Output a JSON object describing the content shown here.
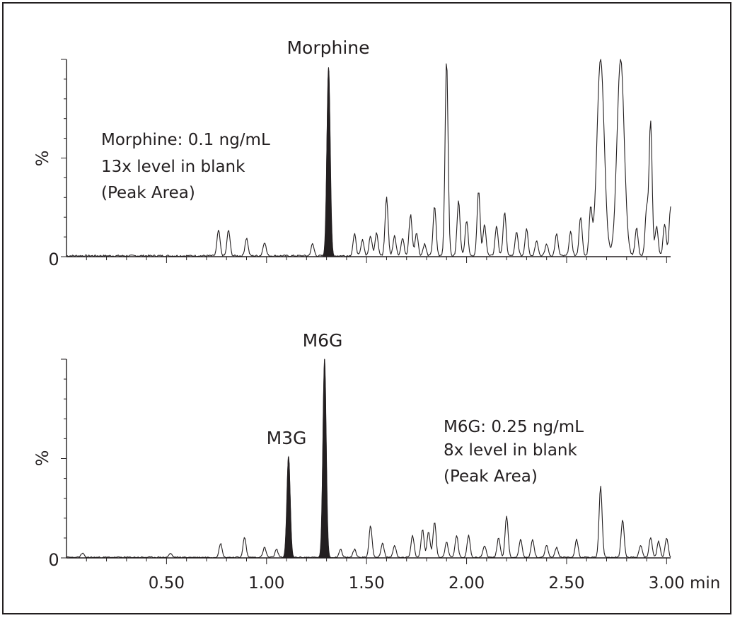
{
  "chart_data": [
    {
      "type": "line",
      "peak_labels": [
        "Morphine"
      ],
      "ylabel": "%",
      "yticks": [
        "0"
      ],
      "annotation": [
        "Morphine: 0.1 ng/mL",
        "13x level in blank",
        "(Peak Area)"
      ],
      "xlim": [
        0.0,
        3.02
      ],
      "ylim": [
        0,
        100
      ],
      "filled_peaks": [
        {
          "name": "Morphine",
          "rt": 1.31,
          "height": 96
        }
      ],
      "trace_peaks": [
        [
          0.76,
          13
        ],
        [
          0.81,
          13
        ],
        [
          0.9,
          9
        ],
        [
          0.99,
          7
        ],
        [
          1.23,
          6
        ],
        [
          1.44,
          11
        ],
        [
          1.48,
          8
        ],
        [
          1.52,
          10
        ],
        [
          1.55,
          12
        ],
        [
          1.6,
          30
        ],
        [
          1.64,
          10
        ],
        [
          1.68,
          9
        ],
        [
          1.72,
          21
        ],
        [
          1.75,
          12
        ],
        [
          1.79,
          6
        ],
        [
          1.84,
          25
        ],
        [
          1.9,
          100
        ],
        [
          1.96,
          28
        ],
        [
          2.0,
          18
        ],
        [
          2.06,
          33
        ],
        [
          2.09,
          16
        ],
        [
          2.15,
          15
        ],
        [
          2.19,
          22
        ],
        [
          2.25,
          12
        ],
        [
          2.3,
          14
        ],
        [
          2.35,
          8
        ],
        [
          2.4,
          6
        ],
        [
          2.45,
          11
        ],
        [
          2.52,
          12
        ],
        [
          2.57,
          20
        ],
        [
          2.62,
          23
        ],
        [
          2.67,
          100
        ],
        [
          2.77,
          100
        ],
        [
          2.85,
          14
        ],
        [
          2.9,
          24
        ],
        [
          2.92,
          68
        ],
        [
          2.95,
          15
        ],
        [
          2.99,
          16
        ],
        [
          3.02,
          25
        ]
      ]
    },
    {
      "type": "line",
      "peak_labels": [
        "M3G",
        "M6G"
      ],
      "ylabel": "%",
      "yticks": [
        "0"
      ],
      "annotation": [
        "M6G: 0.25 ng/mL",
        "8x level in blank",
        "(Peak Area)"
      ],
      "xlim": [
        0.0,
        3.02
      ],
      "ylim": [
        0,
        100
      ],
      "xticks": [
        0.5,
        1.0,
        1.5,
        2.0,
        2.5,
        3.0
      ],
      "xtick_labels": [
        "0.50",
        "1.00",
        "1.50",
        "2.00",
        "2.50",
        "3.00"
      ],
      "xunit": "min",
      "filled_peaks": [
        {
          "name": "M3G",
          "rt": 1.11,
          "height": 51
        },
        {
          "name": "M6G",
          "rt": 1.29,
          "height": 100
        }
      ],
      "trace_peaks": [
        [
          0.08,
          2
        ],
        [
          0.52,
          2
        ],
        [
          0.77,
          7
        ],
        [
          0.89,
          10
        ],
        [
          0.99,
          5
        ],
        [
          1.05,
          4
        ],
        [
          1.37,
          4
        ],
        [
          1.44,
          4
        ],
        [
          1.52,
          16
        ],
        [
          1.58,
          7
        ],
        [
          1.64,
          6
        ],
        [
          1.73,
          11
        ],
        [
          1.78,
          14
        ],
        [
          1.81,
          13
        ],
        [
          1.84,
          18
        ],
        [
          1.9,
          8
        ],
        [
          1.95,
          11
        ],
        [
          2.01,
          11
        ],
        [
          2.09,
          6
        ],
        [
          2.16,
          10
        ],
        [
          2.2,
          21
        ],
        [
          2.27,
          9
        ],
        [
          2.33,
          9
        ],
        [
          2.4,
          6
        ],
        [
          2.45,
          5
        ],
        [
          2.55,
          9
        ],
        [
          2.67,
          36
        ],
        [
          2.78,
          19
        ],
        [
          2.87,
          6
        ],
        [
          2.92,
          10
        ],
        [
          2.96,
          8
        ],
        [
          3.0,
          10
        ]
      ]
    }
  ]
}
